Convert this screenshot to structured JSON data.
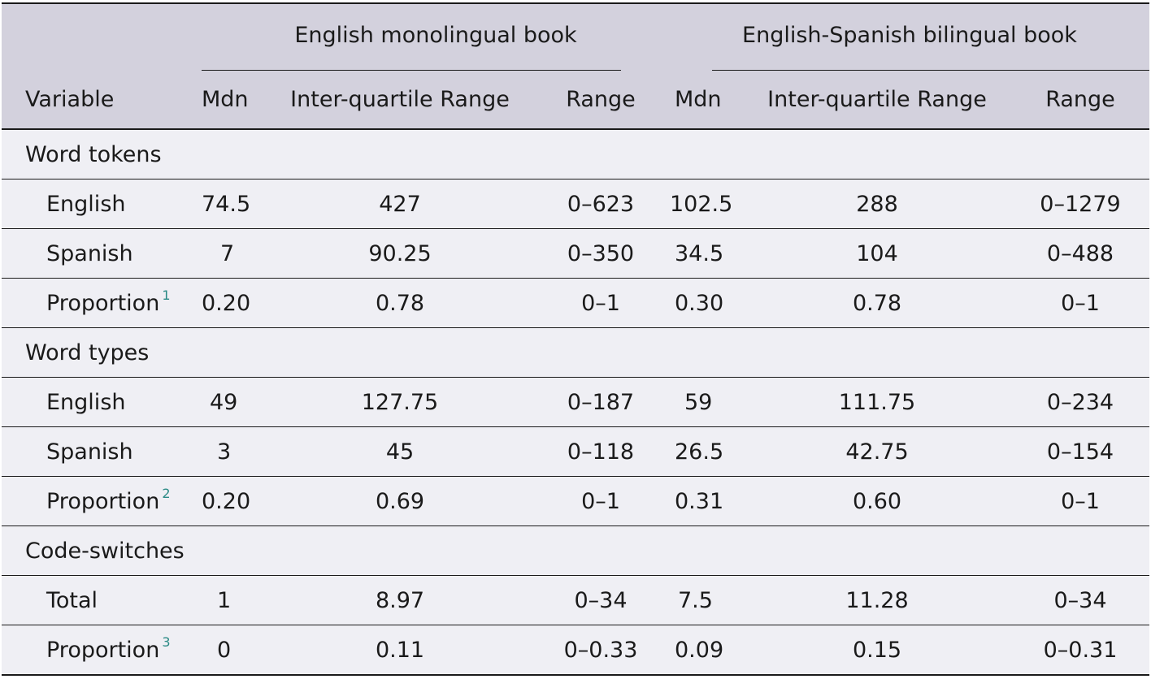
{
  "header": {
    "group_mono": "English monolingual book",
    "group_bi": "English-Spanish bilingual book",
    "col_variable": "Variable",
    "col_mdn": "Mdn",
    "col_iqr": "Inter-quartile Range",
    "col_range": "Range"
  },
  "sections": [
    {
      "title": "Word tokens",
      "rows": [
        {
          "label": "English",
          "sup": "",
          "m_mdn": "74.5",
          "m_iqr": "427",
          "m_range": "0–623",
          "b_mdn": "102.5",
          "b_iqr": "288",
          "b_range": "0–1279"
        },
        {
          "label": "Spanish",
          "sup": "",
          "m_mdn": "7",
          "m_iqr": "90.25",
          "m_range": "0–350",
          "b_mdn": "34.5",
          "b_iqr": "104",
          "b_range": "0–488"
        },
        {
          "label": "Proportion",
          "sup": "1",
          "m_mdn": "0.20",
          "m_iqr": "0.78",
          "m_range": "0–1",
          "b_mdn": "0.30",
          "b_iqr": "0.78",
          "b_range": "0–1"
        }
      ]
    },
    {
      "title": "Word types",
      "rows": [
        {
          "label": "English",
          "sup": "",
          "m_mdn": "49",
          "m_iqr": "127.75",
          "m_range": "0–187",
          "b_mdn": "59",
          "b_iqr": "111.75",
          "b_range": "0–234"
        },
        {
          "label": "Spanish",
          "sup": "",
          "m_mdn": "3",
          "m_iqr": "45",
          "m_range": "0–118",
          "b_mdn": "26.5",
          "b_iqr": "42.75",
          "b_range": "0–154"
        },
        {
          "label": "Proportion",
          "sup": "2",
          "m_mdn": "0.20",
          "m_iqr": "0.69",
          "m_range": "0–1",
          "b_mdn": "0.31",
          "b_iqr": "0.60",
          "b_range": "0–1"
        }
      ]
    },
    {
      "title": "Code-switches",
      "rows": [
        {
          "label": "Total",
          "sup": "",
          "m_mdn": "1",
          "m_iqr": "8.97",
          "m_range": "0–34",
          "b_mdn": "7.5",
          "b_iqr": "11.28",
          "b_range": "0–34"
        },
        {
          "label": "Proportion",
          "sup": "3",
          "m_mdn": "0",
          "m_iqr": "0.11",
          "m_range": "0–0.33",
          "b_mdn": "0.09",
          "b_iqr": "0.15",
          "b_range": "0–0.31"
        }
      ]
    }
  ]
}
